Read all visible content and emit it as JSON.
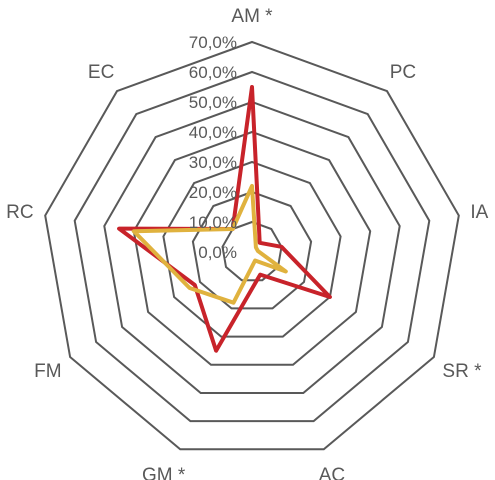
{
  "chart_data": {
    "type": "radar",
    "categories": [
      "AM *",
      "PC",
      "IA",
      "SR *",
      "AC",
      "GM *",
      "FM",
      "RC",
      "EC"
    ],
    "rticks": [
      "0,0%",
      "10,0%",
      "20,0%",
      "30,0%",
      "40,0%",
      "50,0%",
      "60,0%",
      "70,0%"
    ],
    "rlim": [
      0,
      70
    ],
    "grid": true,
    "series": [
      {
        "color": "#C8232A",
        "values": [
          55,
          4,
          10,
          30,
          8,
          35,
          22,
          45,
          10
        ]
      },
      {
        "color": "#E0B23E",
        "values": [
          22,
          2,
          2,
          13,
          3,
          18,
          24,
          40,
          10
        ]
      }
    ]
  }
}
